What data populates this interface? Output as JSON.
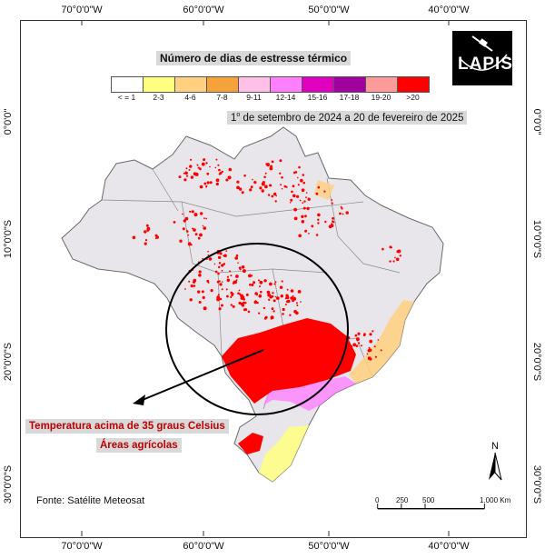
{
  "map": {
    "title": "Número de dias de estresse térmico",
    "legend": {
      "labels": [
        "< = 1",
        "2-3",
        "4-6",
        "7-8",
        "9-11",
        "12-14",
        "15-16",
        "17-18",
        "19-20",
        ">20"
      ],
      "colors": [
        "#ffffff",
        "#ffff80",
        "#ffd080",
        "#f5a23a",
        "#ffc0e8",
        "#ff80ff",
        "#e000c0",
        "#a000a0",
        "#ff9a9a",
        "#ff0000"
      ]
    },
    "period": {
      "day": "1",
      "ordinal": "o",
      "rest": " de setembro de 2024 a 20 de fevereiro de 2025"
    },
    "annotation": {
      "line1": "Temperatura acima de 35 graus Celsius",
      "line2": "Áreas agrícolas"
    },
    "source": "Fonte: Satélite Meteosat",
    "scale": {
      "labels": [
        "0",
        "250",
        "500",
        "1.000 Km"
      ]
    },
    "north_label": "N",
    "logo": "LAPIS",
    "axes": {
      "longitude": [
        "70°0'0\"W",
        "60°0'0\"W",
        "50°0'0\"W",
        "40°0'0\"W"
      ],
      "latitude": [
        "0°0'0\"",
        "10°0'0\"S",
        "20°0'0\"S",
        "30°0'0\"S"
      ]
    }
  },
  "colors": {
    "land": "#e8e6ea",
    "heat_red": "#ff0000",
    "annotation_text": "#c00000",
    "label_bg": "#d9d9d9"
  }
}
